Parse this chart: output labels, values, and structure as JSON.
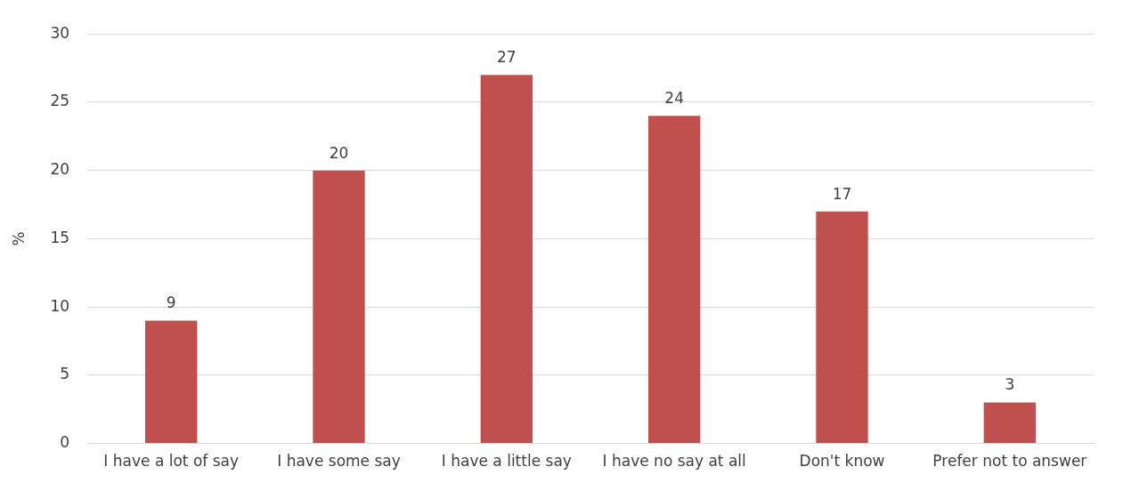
{
  "chart_data": {
    "type": "bar",
    "ylabel": "%",
    "categories": [
      "I have a lot of say",
      "I have some say",
      "I have a little say",
      "I have no say at all",
      "Don't know",
      "Prefer not to answer"
    ],
    "values": [
      9,
      20,
      27,
      24,
      17,
      3
    ],
    "color": "#c0504d",
    "ylim": [
      0,
      30
    ],
    "yticks": [
      0,
      5,
      10,
      15,
      20,
      25,
      30
    ],
    "grid": "y",
    "data_labels": true,
    "legend": false
  }
}
